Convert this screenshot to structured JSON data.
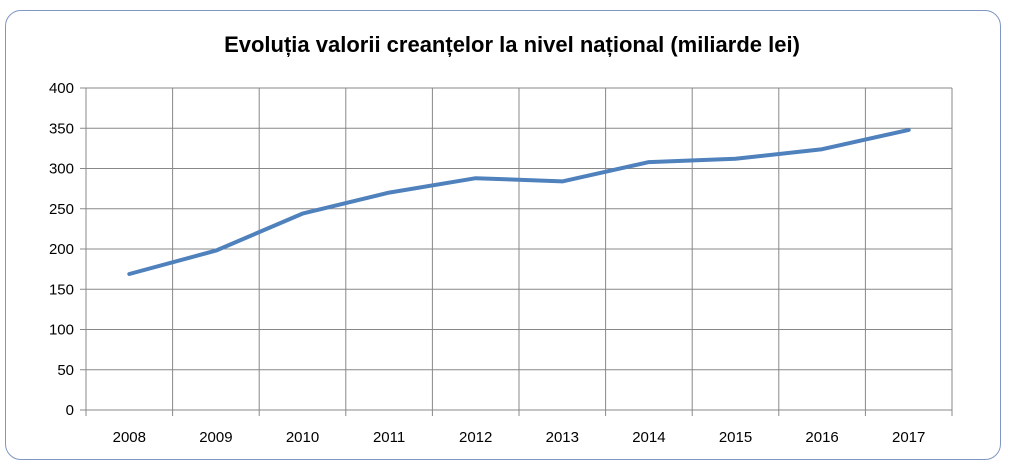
{
  "chart_data": {
    "type": "line",
    "title": "Evoluția valorii creanțelor la nivel național (miliarde lei)",
    "xlabel": "",
    "ylabel": "",
    "categories": [
      "2008",
      "2009",
      "2010",
      "2011",
      "2012",
      "2013",
      "2014",
      "2015",
      "2016",
      "2017"
    ],
    "series": [
      {
        "values": [
          169,
          198,
          244,
          270,
          288,
          284,
          308,
          312,
          324,
          348
        ],
        "color": "#4f81bd"
      }
    ],
    "ylim": [
      0,
      400
    ],
    "yticks": [
      "0",
      "50",
      "100",
      "150",
      "200",
      "250",
      "300",
      "350",
      "400"
    ],
    "grid": true,
    "legend": "none"
  },
  "colors": {
    "frame_border": "#7f97c2",
    "grid": "#888888",
    "line": "#4f81bd"
  }
}
